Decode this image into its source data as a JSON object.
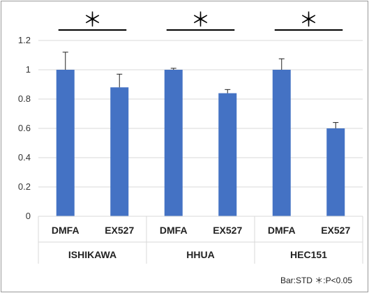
{
  "chart_data": {
    "type": "bar",
    "categories": [
      "DMFA",
      "EX527",
      "DMFA",
      "EX527",
      "DMFA",
      "EX527"
    ],
    "groups": [
      "ISHIKAWA",
      "HHUA",
      "HEC151"
    ],
    "values": [
      1.0,
      0.88,
      1.0,
      0.84,
      1.0,
      0.6
    ],
    "errors": [
      0.12,
      0.09,
      0.01,
      0.025,
      0.075,
      0.04
    ],
    "yticks": [
      "0",
      "0.2",
      "0.4",
      "0.6",
      "0.8",
      "1",
      "1.2"
    ],
    "ylim": [
      0,
      1.2
    ],
    "grid": true,
    "significance": [
      "＊",
      "＊",
      "＊"
    ],
    "note": "Bar:STD ＊:P<0.05",
    "bar_color": "#4472c4",
    "grid_color": "#d9d9d9"
  }
}
